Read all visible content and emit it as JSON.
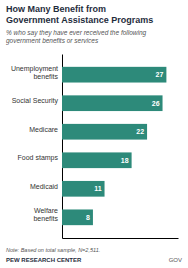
{
  "chart_data": {
    "type": "bar",
    "orientation": "horizontal",
    "title": "How Many Benefit from\nGovernment Assistance Programs",
    "subtitle": "% who say they have ever received the following\ngovernment benefits or services",
    "categories": [
      "Welfare\nbenefits",
      "Medicaid",
      "Food stamps",
      "Medicare",
      "Social Security",
      "Unemployment\nbenefits"
    ],
    "values": [
      8,
      11,
      18,
      22,
      26,
      27
    ],
    "color": "#2d8a7a",
    "xlim": [
      0,
      30
    ],
    "data_labels": true,
    "tick_labels": "y",
    "annotations": [
      "Note: Based on total sample, N=2,511.",
      "PEW RESEARCH CENTER",
      "GOV"
    ]
  }
}
